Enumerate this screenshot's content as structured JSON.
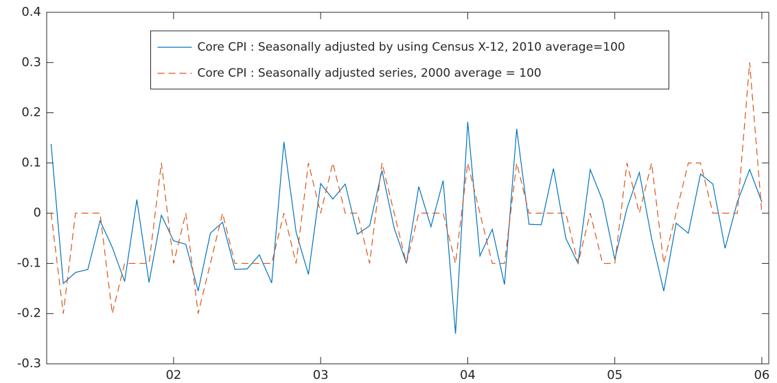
{
  "chart_data": {
    "type": "line",
    "x": [
      2001.167,
      2001.25,
      2001.333,
      2001.417,
      2001.5,
      2001.583,
      2001.667,
      2001.75,
      2001.833,
      2001.917,
      2002,
      2002.083,
      2002.167,
      2002.25,
      2002.333,
      2002.417,
      2002.5,
      2002.583,
      2002.667,
      2002.75,
      2002.833,
      2002.917,
      2003,
      2003.083,
      2003.167,
      2003.25,
      2003.333,
      2003.417,
      2003.5,
      2003.583,
      2003.667,
      2003.75,
      2003.833,
      2003.917,
      2004,
      2004.083,
      2004.167,
      2004.25,
      2004.333,
      2004.417,
      2004.5,
      2004.583,
      2004.667,
      2004.75,
      2004.833,
      2004.917,
      2005,
      2005.083,
      2005.167,
      2005.25,
      2005.333,
      2005.417,
      2005.5,
      2005.583,
      2005.667,
      2005.75,
      2005.833,
      2005.917,
      2006
    ],
    "series": [
      {
        "name": "Core CPI : Seasonally adjusted by using Census X-12, 2010 average=100",
        "color": "#0072bd",
        "dash": false,
        "values": [
          0.138,
          -0.14,
          -0.118,
          -0.112,
          -0.015,
          -0.068,
          -0.136,
          0.027,
          -0.138,
          -0.004,
          -0.055,
          -0.062,
          -0.155,
          -0.04,
          -0.018,
          -0.112,
          -0.111,
          -0.083,
          -0.139,
          0.142,
          -0.038,
          -0.122,
          0.059,
          0.028,
          0.058,
          -0.042,
          -0.025,
          0.085,
          -0.03,
          -0.1,
          0.053,
          -0.027,
          0.065,
          -0.24,
          0.182,
          -0.085,
          -0.032,
          -0.142,
          0.168,
          -0.022,
          -0.023,
          0.089,
          -0.05,
          -0.1,
          0.087,
          0.025,
          -0.092,
          0.01,
          0.081,
          -0.05,
          -0.155,
          -0.02,
          -0.04,
          0.078,
          0.058,
          -0.07,
          0.022,
          0.087,
          0.022
        ]
      },
      {
        "name": "Core CPI : Seasonally adjusted series, 2000 average = 100",
        "color": "#d95319",
        "dash": true,
        "values": [
          0,
          -0.2,
          0,
          0,
          0,
          -0.2,
          -0.1,
          -0.1,
          -0.1,
          0.1,
          -0.1,
          0,
          -0.2,
          -0.1,
          0,
          -0.1,
          -0.1,
          -0.1,
          -0.1,
          0,
          -0.1,
          0.1,
          0,
          0.1,
          0,
          0,
          -0.1,
          0.1,
          0,
          -0.1,
          0,
          0,
          0,
          -0.1,
          0.1,
          0,
          -0.1,
          -0.1,
          0.1,
          0,
          0,
          0,
          0,
          -0.1,
          0,
          -0.1,
          -0.1,
          0.1,
          0,
          0.1,
          -0.1,
          0,
          0.1,
          0.1,
          0,
          0,
          0,
          0.3,
          0
        ]
      }
    ],
    "xlim": [
      2001.137,
      2006.047
    ],
    "xticks": [
      {
        "value": 2002,
        "label": "02"
      },
      {
        "value": 2003,
        "label": "03"
      },
      {
        "value": 2004,
        "label": "04"
      },
      {
        "value": 2005,
        "label": "05"
      },
      {
        "value": 2006,
        "label": "06"
      }
    ],
    "ylim": [
      -0.3,
      0.4
    ],
    "yticks": [
      -0.3,
      -0.2,
      -0.1,
      0,
      0.1,
      0.2,
      0.3,
      0.4
    ],
    "grid": false,
    "legend": "north"
  }
}
